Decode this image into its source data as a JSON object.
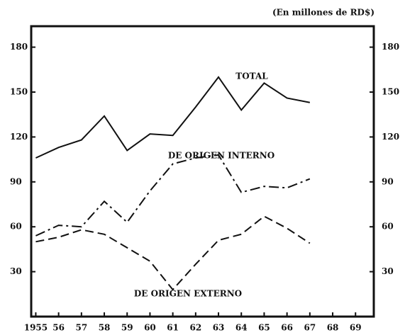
{
  "chart_data": {
    "type": "line",
    "subtitle": "(En millones de RD$)",
    "x": [
      1955,
      1956,
      1957,
      1958,
      1959,
      1960,
      1961,
      1962,
      1963,
      1964,
      1965,
      1966,
      1967
    ],
    "series": [
      {
        "name": "TOTAL",
        "color": "#111111",
        "dash": "solid",
        "values": [
          106,
          113,
          118,
          134,
          111,
          122,
          121,
          140,
          160,
          138,
          156,
          146,
          143
        ]
      },
      {
        "name": "DE ORIGEN INTERNO",
        "color": "#111111",
        "dash": "dashdot",
        "values": [
          54,
          61,
          60,
          77,
          63,
          84,
          102,
          106,
          108,
          83,
          87,
          86,
          92
        ]
      },
      {
        "name": "DE ORIGEN EXTERNO",
        "color": "#111111",
        "dash": "dashed",
        "values": [
          50,
          53,
          58,
          55,
          46,
          37,
          18,
          35,
          51,
          55,
          67,
          59,
          49
        ]
      }
    ],
    "xlim": [
      1954.8,
      1969.8
    ],
    "xticks": [
      {
        "value": 1955,
        "label": "1955"
      },
      {
        "value": 1956,
        "label": "56"
      },
      {
        "value": 1957,
        "label": "57"
      },
      {
        "value": 1958,
        "label": "58"
      },
      {
        "value": 1959,
        "label": "59"
      },
      {
        "value": 1960,
        "label": "60"
      },
      {
        "value": 1961,
        "label": "61"
      },
      {
        "value": 1962,
        "label": "62"
      },
      {
        "value": 1963,
        "label": "63"
      },
      {
        "value": 1964,
        "label": "64"
      },
      {
        "value": 1965,
        "label": "65"
      },
      {
        "value": 1966,
        "label": "66"
      },
      {
        "value": 1967,
        "label": "67"
      },
      {
        "value": 1968,
        "label": "68"
      },
      {
        "value": 1969,
        "label": "69"
      }
    ],
    "ylim": [
      0,
      194
    ],
    "yticks": [
      30,
      60,
      90,
      120,
      150,
      180
    ],
    "y2lim": [
      0,
      194
    ],
    "y2ticks": [
      30,
      60,
      90,
      120,
      150,
      180
    ]
  }
}
